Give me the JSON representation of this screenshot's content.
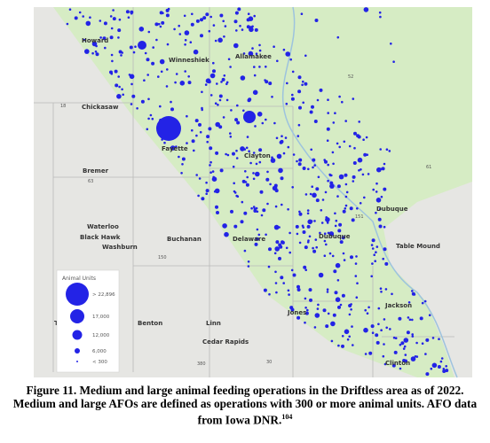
{
  "map": {
    "places": [
      "Howard",
      "Winneshiek",
      "Allamakee",
      "Chickasaw",
      "Fayette",
      "Clayton",
      "Bremer",
      "Waterloo",
      "Black Hawk",
      "Washburn",
      "Buchanan",
      "Delaware",
      "Dubuque",
      "Dubuque",
      "Table Mound",
      "Jackson",
      "Jones",
      "Tama",
      "Benton",
      "Linn",
      "Cedar Rapids",
      "Clinton"
    ],
    "roads": [
      "18",
      "63",
      "150",
      "52",
      "151",
      "30",
      "380",
      "61"
    ],
    "legend": {
      "title": "Animal Units",
      "items": [
        "> 22,896",
        "17,000",
        "12,000",
        "6,000",
        "< 300"
      ]
    }
  },
  "caption": {
    "text": "Figure 11. Medium and large animal feeding operations in the Driftless area as of 2022. Medium and large AFOs are defined as operations with 300 or more animal units. AFO data from Iowa DNR.",
    "note": "104"
  }
}
